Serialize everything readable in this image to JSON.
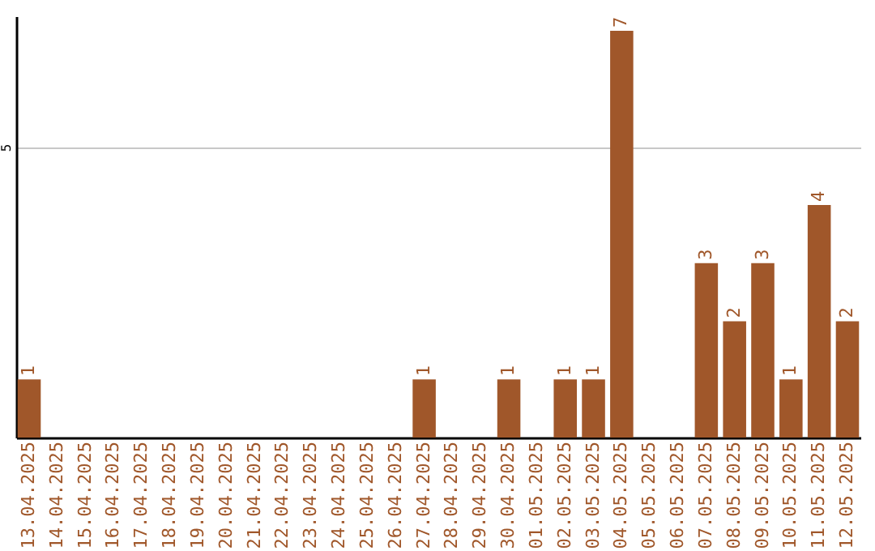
{
  "chart_data": {
    "type": "bar",
    "categories": [
      "13.04.2025",
      "14.04.2025",
      "15.04.2025",
      "16.04.2025",
      "17.04.2025",
      "18.04.2025",
      "19.04.2025",
      "20.04.2025",
      "21.04.2025",
      "22.04.2025",
      "23.04.2025",
      "24.04.2025",
      "25.04.2025",
      "26.04.2025",
      "27.04.2025",
      "28.04.2025",
      "29.04.2025",
      "30.04.2025",
      "01.05.2025",
      "02.05.2025",
      "03.05.2025",
      "04.05.2025",
      "05.05.2025",
      "06.05.2025",
      "07.05.2025",
      "08.05.2025",
      "09.05.2025",
      "10.05.2025",
      "11.05.2025",
      "12.05.2025"
    ],
    "values": [
      1,
      0,
      0,
      0,
      0,
      0,
      0,
      0,
      0,
      0,
      0,
      0,
      0,
      0,
      1,
      0,
      0,
      1,
      0,
      1,
      1,
      7,
      0,
      0,
      3,
      2,
      3,
      1,
      4,
      2
    ],
    "value_labels": [
      "1",
      null,
      null,
      null,
      null,
      null,
      null,
      null,
      null,
      null,
      null,
      null,
      null,
      null,
      "1",
      null,
      null,
      "1",
      null,
      "1",
      "1",
      "7",
      null,
      null,
      "3",
      "2",
      "3",
      "1",
      "4",
      "2"
    ],
    "color": "#a0572a",
    "ylim": [
      0,
      7.25
    ],
    "yticks": [
      5
    ],
    "grid": "y"
  }
}
